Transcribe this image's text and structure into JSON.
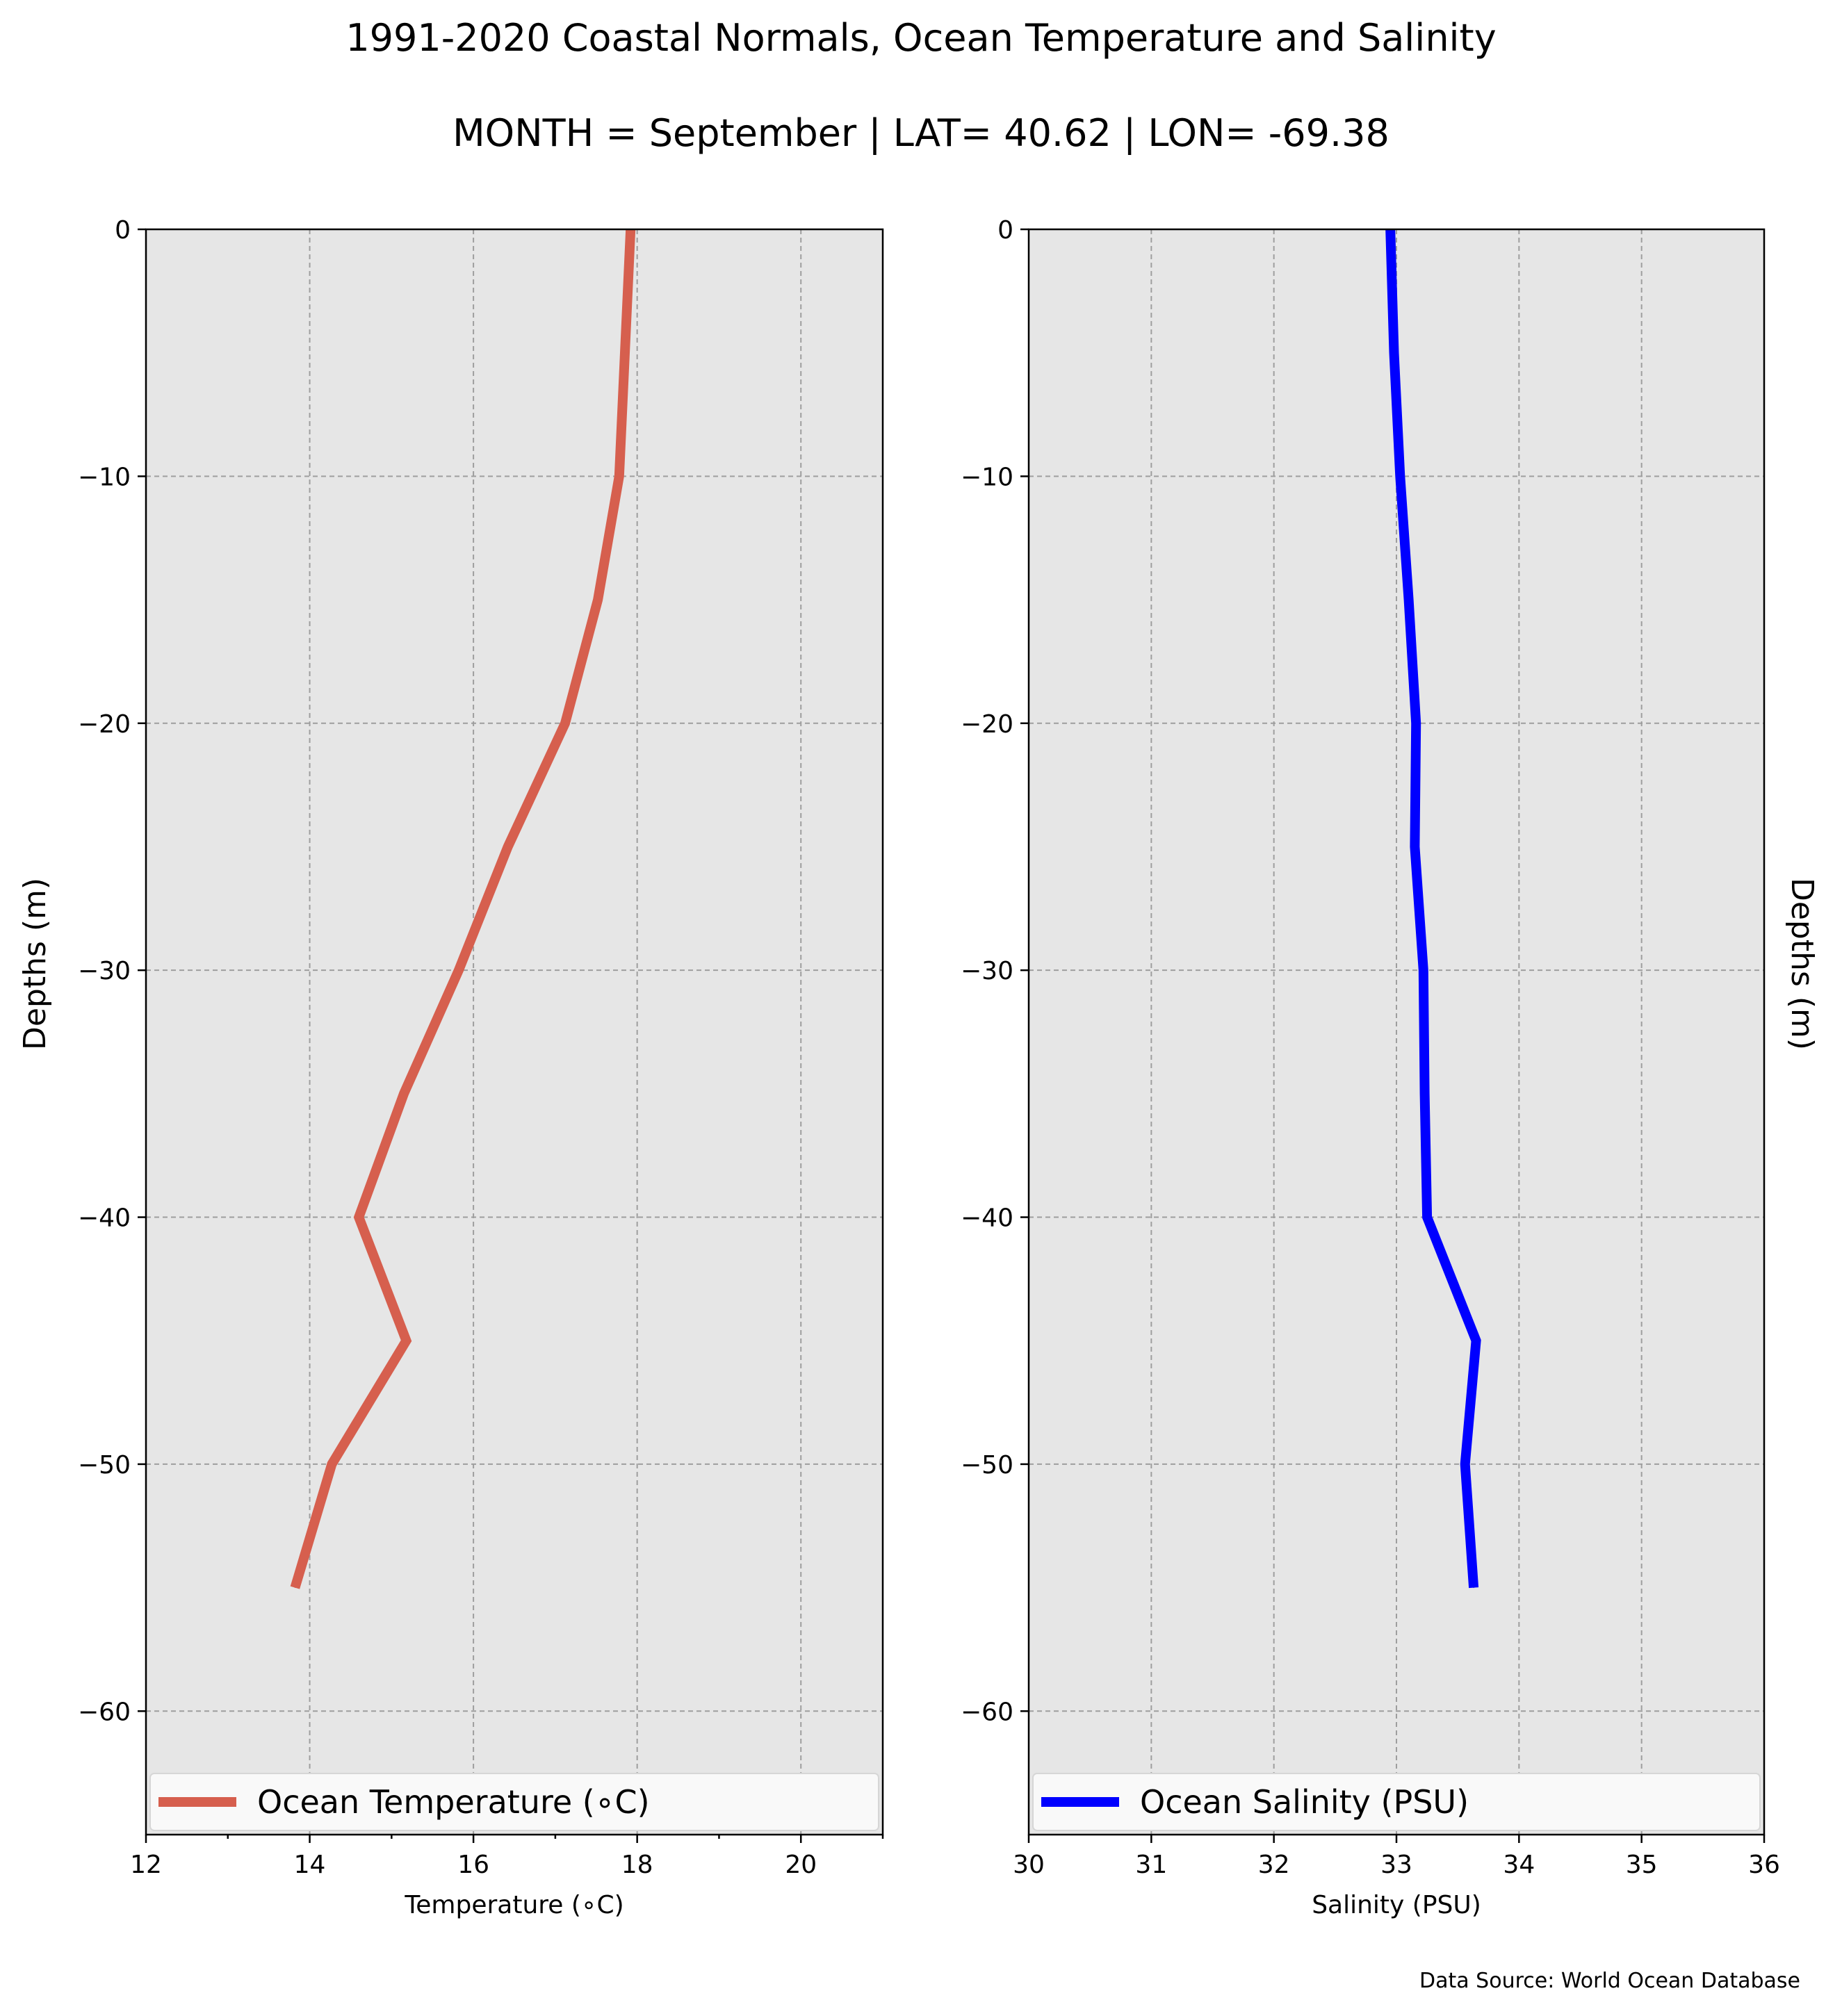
{
  "figure": {
    "title": "1991-2020 Coastal Normals, Ocean Temperature and Salinity",
    "subtitle": "MONTH = September | LAT= 40.62 | LON= -69.38",
    "source": "Data Source: World Ocean Database"
  },
  "chart_data": [
    {
      "type": "line",
      "xlabel": "Temperature ($^\\circ$C)",
      "xlabel_display": "Temperature (∘C)",
      "ylabel": "Depths (m)",
      "xlim": [
        12,
        21
      ],
      "ylim": [
        -65,
        0
      ],
      "xticks": [
        "12",
        "14",
        "16",
        "18",
        "20"
      ],
      "xtick_values": [
        12,
        14,
        16,
        18,
        20
      ],
      "yticks": [
        "0",
        "−10",
        "−20",
        "−30",
        "−40",
        "−50",
        "−60"
      ],
      "ytick_values": [
        0,
        -10,
        -20,
        -30,
        -40,
        -50,
        -60
      ],
      "grid": true,
      "background": "#e6e6e6",
      "legend_position": "bottom",
      "series": [
        {
          "name": "Ocean Temperature (∘C)",
          "color": "#d65f4e",
          "x": [
            17.92,
            17.85,
            17.78,
            17.52,
            17.12,
            16.42,
            15.82,
            15.15,
            14.6,
            15.18,
            14.27,
            13.82
          ],
          "y": [
            0,
            -5,
            -10,
            -15,
            -20,
            -25,
            -30,
            -35,
            -40,
            -45,
            -50,
            -55
          ]
        }
      ]
    },
    {
      "type": "line",
      "xlabel": "Salinity (PSU)",
      "ylabel": "Depths (m)",
      "xlim": [
        30,
        36
      ],
      "ylim": [
        -65,
        0
      ],
      "xticks": [
        "30",
        "31",
        "32",
        "33",
        "34",
        "35",
        "36"
      ],
      "xtick_values": [
        30,
        31,
        32,
        33,
        34,
        35,
        36
      ],
      "yticks": [
        "0",
        "−10",
        "−20",
        "−30",
        "−40",
        "−50",
        "−60"
      ],
      "ytick_values": [
        0,
        -10,
        -20,
        -30,
        -40,
        -50,
        -60
      ],
      "grid": true,
      "background": "#e6e6e6",
      "legend_position": "bottom",
      "series": [
        {
          "name": "Ocean Salinity (PSU)",
          "color": "#0000ff",
          "x": [
            32.95,
            32.98,
            33.03,
            33.1,
            33.16,
            33.15,
            33.22,
            33.23,
            33.25,
            33.65,
            33.56,
            33.63
          ],
          "y": [
            0,
            -5,
            -10,
            -15,
            -20,
            -25,
            -30,
            -35,
            -40,
            -45,
            -50,
            -55
          ]
        }
      ]
    }
  ]
}
